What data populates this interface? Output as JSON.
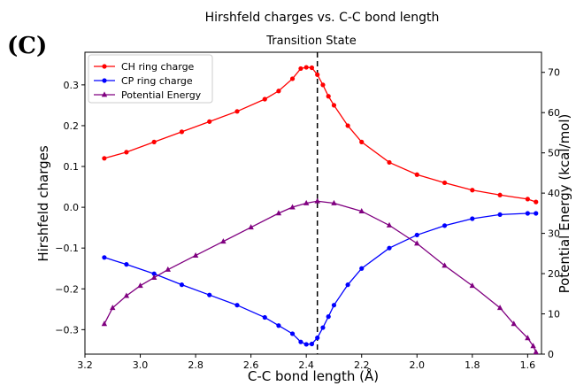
{
  "panel_label": "(C)",
  "chart_data": {
    "type": "line",
    "title": "Hirshfeld charges vs. C-C bond length",
    "subtitle": "Transition State",
    "xlabel": "C-C bond length (Å)",
    "ylabel": "Hirshfeld charges",
    "y2label": "Potential Energy (kcal/mol)",
    "x_reversed": true,
    "xlim": [
      3.2,
      1.55
    ],
    "ylim": [
      -0.36,
      0.38
    ],
    "y2lim": [
      0,
      75
    ],
    "xticks": [
      "3.2",
      "3.0",
      "2.8",
      "2.6",
      "2.4",
      "2.2",
      "2.0",
      "1.8",
      "1.6"
    ],
    "yticks": [
      "−0.3",
      "−0.2",
      "−0.1",
      "0.0",
      "0.1",
      "0.2",
      "0.3"
    ],
    "y2ticks": [
      "0",
      "10",
      "20",
      "30",
      "40",
      "50",
      "60",
      "70"
    ],
    "transition_state_x": 2.36,
    "grid": false,
    "legend_position": "top-left",
    "series": [
      {
        "name": "CH ring charge",
        "axis": "left",
        "color": "#ff0000",
        "marker": "circle",
        "x": [
          3.13,
          3.05,
          2.95,
          2.85,
          2.75,
          2.65,
          2.55,
          2.5,
          2.45,
          2.42,
          2.4,
          2.38,
          2.36,
          2.34,
          2.32,
          2.3,
          2.25,
          2.2,
          2.1,
          2.0,
          1.9,
          1.8,
          1.7,
          1.6,
          1.57
        ],
        "y": [
          0.12,
          0.135,
          0.16,
          0.185,
          0.21,
          0.235,
          0.265,
          0.285,
          0.315,
          0.34,
          0.343,
          0.342,
          0.325,
          0.3,
          0.272,
          0.25,
          0.2,
          0.16,
          0.11,
          0.08,
          0.06,
          0.042,
          0.03,
          0.02,
          0.013
        ]
      },
      {
        "name": "CP ring charge",
        "axis": "left",
        "color": "#0000ff",
        "marker": "circle",
        "x": [
          3.13,
          3.05,
          2.95,
          2.85,
          2.75,
          2.65,
          2.55,
          2.5,
          2.45,
          2.42,
          2.4,
          2.38,
          2.36,
          2.34,
          2.32,
          2.3,
          2.25,
          2.2,
          2.1,
          2.0,
          1.9,
          1.8,
          1.7,
          1.6,
          1.57
        ],
        "y": [
          -0.123,
          -0.14,
          -0.163,
          -0.19,
          -0.215,
          -0.24,
          -0.27,
          -0.29,
          -0.31,
          -0.33,
          -0.336,
          -0.335,
          -0.32,
          -0.295,
          -0.268,
          -0.24,
          -0.19,
          -0.15,
          -0.1,
          -0.068,
          -0.045,
          -0.028,
          -0.018,
          -0.015,
          -0.015
        ]
      },
      {
        "name": "Potential Energy",
        "axis": "right",
        "color": "#800080",
        "marker": "triangle",
        "x": [
          3.13,
          3.1,
          3.05,
          3.0,
          2.95,
          2.9,
          2.8,
          2.7,
          2.6,
          2.5,
          2.45,
          2.4,
          2.36,
          2.3,
          2.2,
          2.1,
          2.0,
          1.9,
          1.8,
          1.7,
          1.65,
          1.6,
          1.58,
          1.57
        ],
        "y": [
          7.5,
          11.5,
          14.5,
          17,
          19,
          21,
          24.5,
          28,
          31.5,
          35,
          36.5,
          37.5,
          38,
          37.5,
          35.5,
          32,
          27.5,
          22,
          17,
          11.5,
          7.5,
          4,
          2,
          0.5
        ]
      }
    ]
  }
}
